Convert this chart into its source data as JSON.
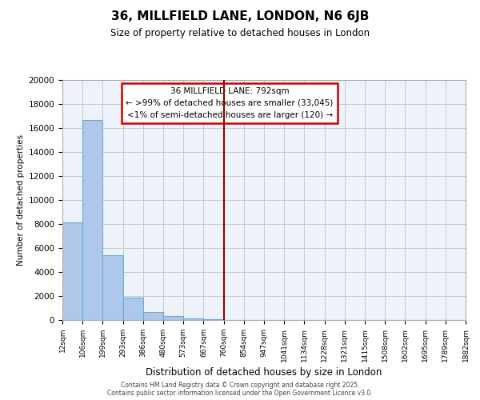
{
  "title": "36, MILLFIELD LANE, LONDON, N6 6JB",
  "subtitle": "Size of property relative to detached houses in London",
  "xlabel": "Distribution of detached houses by size in London",
  "ylabel": "Number of detached properties",
  "bar_values": [
    8150,
    16650,
    5400,
    1850,
    700,
    350,
    150,
    100,
    30,
    10,
    5,
    3,
    2,
    1,
    1,
    0,
    0,
    0,
    0,
    0
  ],
  "bin_labels": [
    "12sqm",
    "106sqm",
    "199sqm",
    "293sqm",
    "386sqm",
    "480sqm",
    "573sqm",
    "667sqm",
    "760sqm",
    "854sqm",
    "947sqm",
    "1041sqm",
    "1134sqm",
    "1228sqm",
    "1321sqm",
    "1415sqm",
    "1508sqm",
    "1602sqm",
    "1695sqm",
    "1789sqm",
    "1882sqm"
  ],
  "bar_color": "#adc8e8",
  "bar_edge_color": "#6aaad4",
  "vline_color": "#8b0000",
  "vline_pos": 7.5,
  "annotation_text": "36 MILLFIELD LANE: 792sqm\n← >99% of detached houses are smaller (33,045)\n<1% of semi-detached houses are larger (120) →",
  "annotation_box_edgecolor": "#cc0000",
  "ylim": [
    0,
    20000
  ],
  "yticks": [
    0,
    2000,
    4000,
    6000,
    8000,
    10000,
    12000,
    14000,
    16000,
    18000,
    20000
  ],
  "bg_color": "#eef3fb",
  "grid_color": "#c8c8c8",
  "footer1": "Contains HM Land Registry data © Crown copyright and database right 2025.",
  "footer2": "Contains public sector information licensed under the Open Government Licence v3.0."
}
